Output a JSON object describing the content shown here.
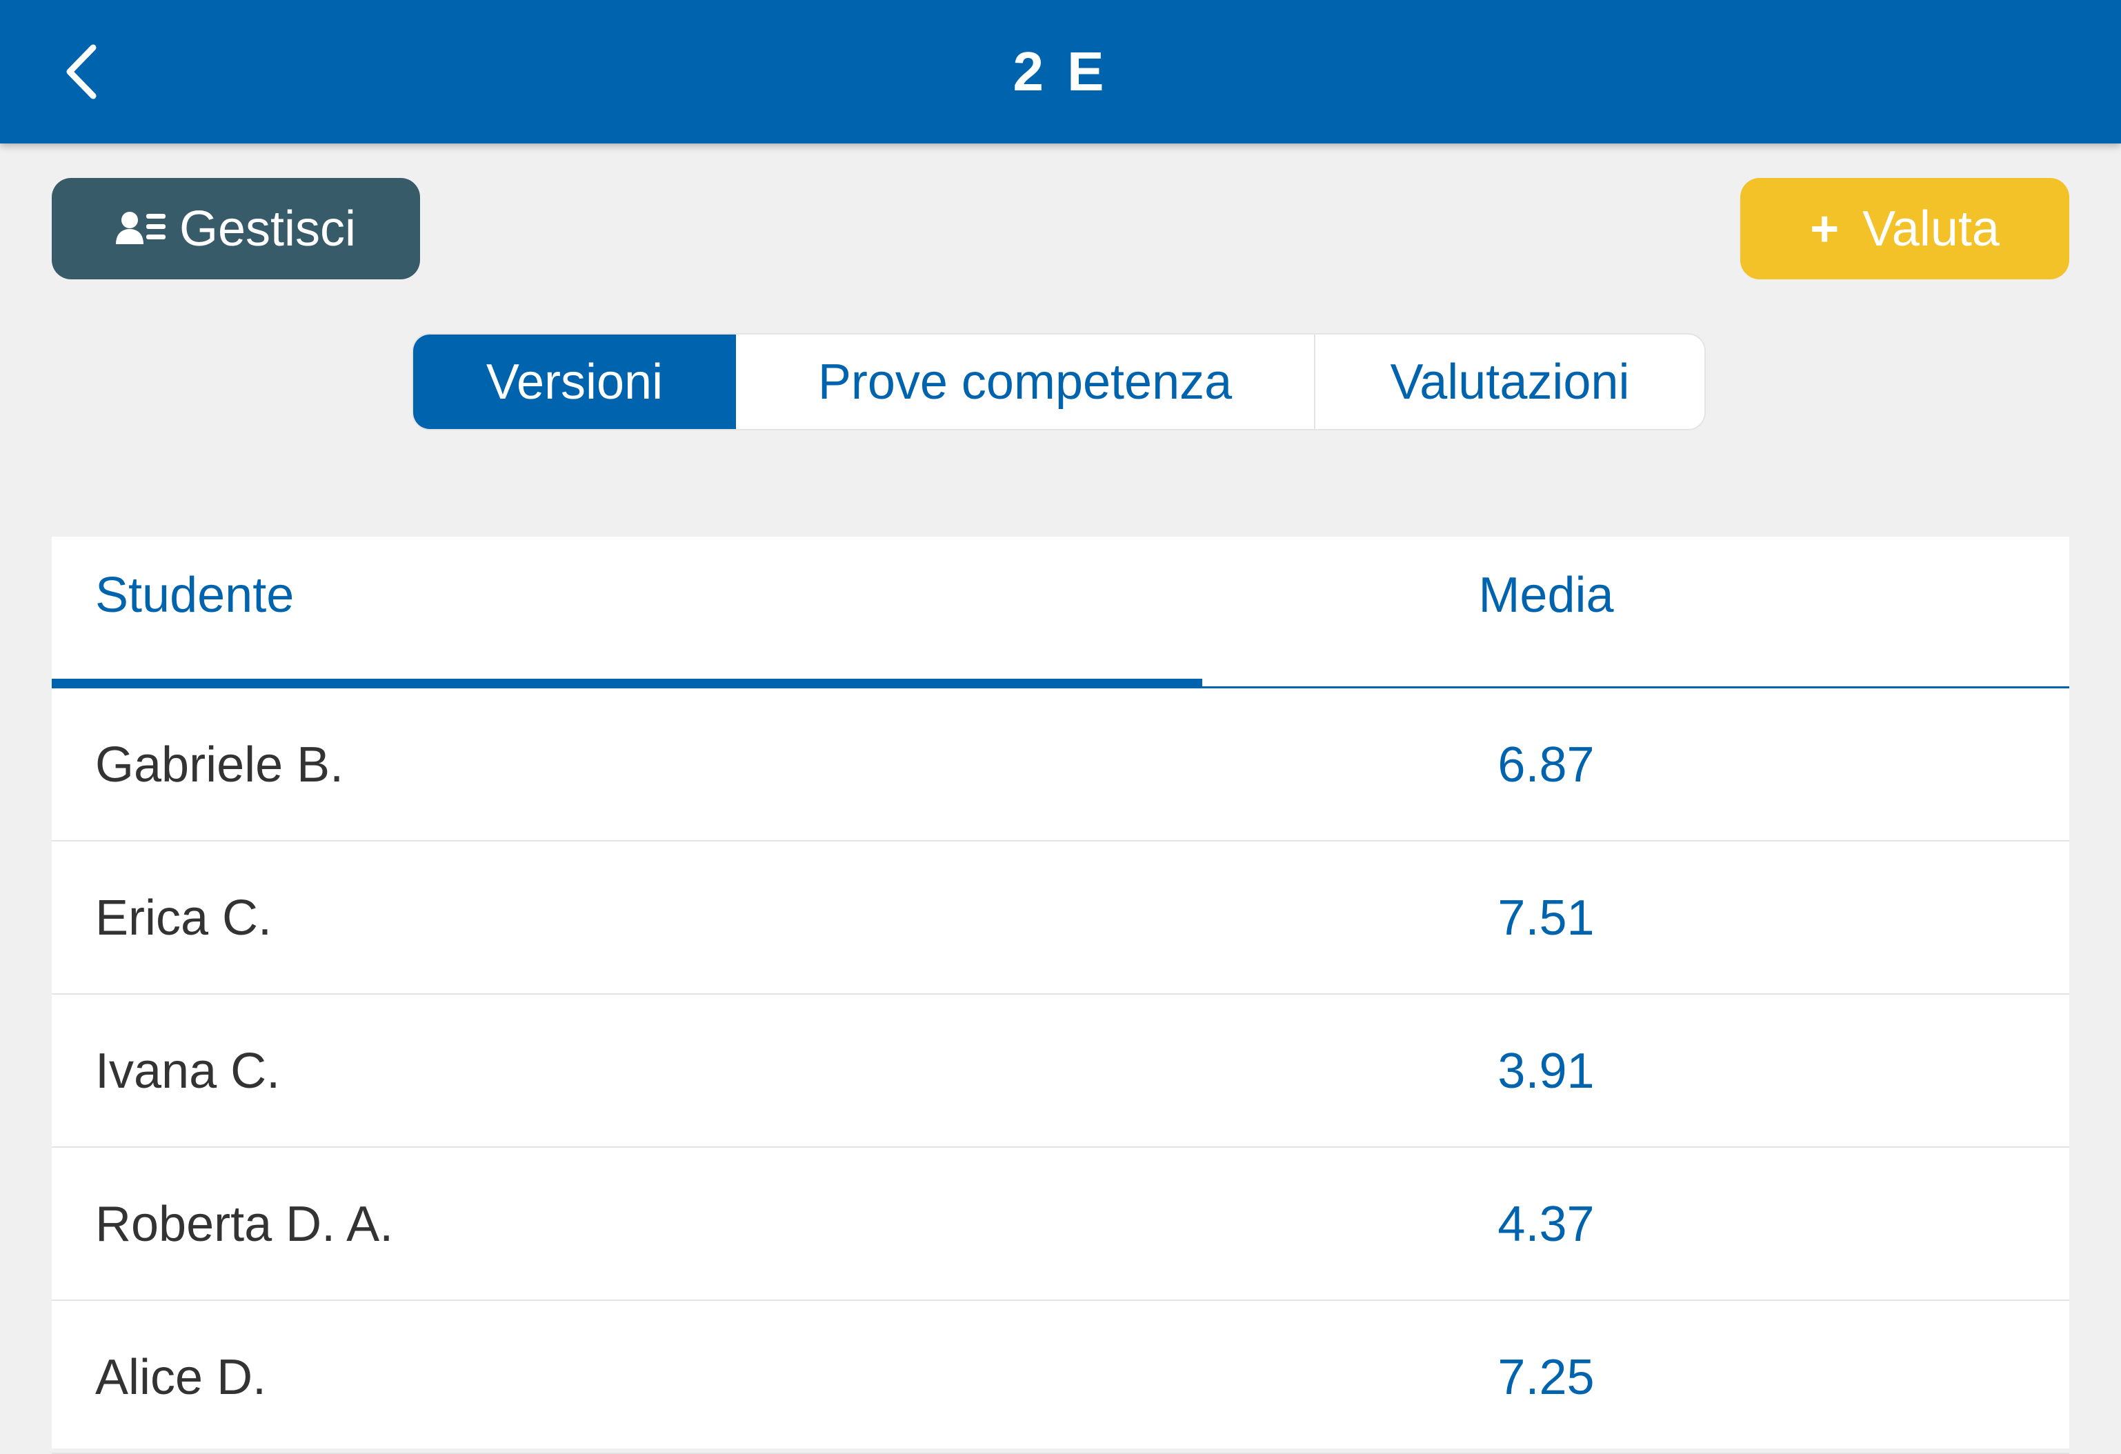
{
  "header": {
    "title": "2 E",
    "back_icon": "chevron-left-icon"
  },
  "actions": {
    "manage_label": "Gestisci",
    "manage_icon": "users-list-icon",
    "rate_label": "Valuta",
    "rate_icon": "plus-icon",
    "rate_icon_glyph": "+"
  },
  "tabs": [
    {
      "label": "Versioni",
      "active": true
    },
    {
      "label": "Prove competenza",
      "active": false
    },
    {
      "label": "Valutazioni",
      "active": false
    }
  ],
  "table": {
    "columns": {
      "student": "Studente",
      "average": "Media"
    },
    "sorted_by": "student",
    "rows": [
      {
        "name": "Gabriele B.",
        "avg": "6.87"
      },
      {
        "name": "Erica C.",
        "avg": "7.51"
      },
      {
        "name": "Ivana C.",
        "avg": "3.91"
      },
      {
        "name": "Roberta D. A.",
        "avg": "4.37"
      },
      {
        "name": "Alice D.",
        "avg": "7.25"
      }
    ]
  },
  "colors": {
    "primary": "#0063ad",
    "manage_button": "#385b6a",
    "rate_button": "#f3c128",
    "background": "#f0f0f0"
  }
}
